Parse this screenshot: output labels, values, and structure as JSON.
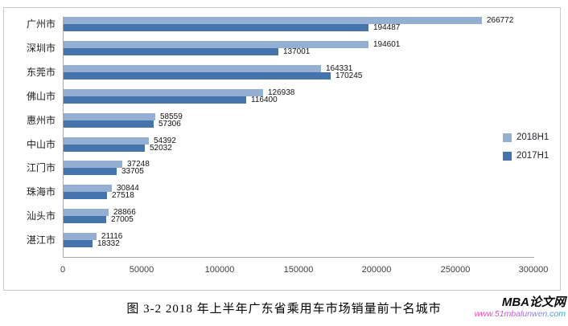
{
  "chart_data": {
    "type": "bar",
    "orientation": "horizontal",
    "title": "",
    "categories": [
      "广州市",
      "深圳市",
      "东莞市",
      "佛山市",
      "惠州市",
      "中山市",
      "江门市",
      "珠海市",
      "汕头市",
      "湛江市"
    ],
    "series": [
      {
        "name": "2018H1",
        "color": "#95AFD3",
        "values": [
          266772,
          194601,
          164331,
          126938,
          58559,
          54392,
          37248,
          30844,
          28866,
          21116
        ]
      },
      {
        "name": "2017H1",
        "color": "#4573AB",
        "values": [
          194487,
          137001,
          170245,
          116400,
          57306,
          52032,
          33705,
          27518,
          27005,
          18332
        ]
      }
    ],
    "xlim": [
      0,
      300000
    ],
    "x_ticks": [
      0,
      50000,
      100000,
      150000,
      200000,
      250000,
      300000
    ],
    "grid": false,
    "data_labels": true,
    "legend_position": "right",
    "axis_color": "#a6a6a6"
  },
  "caption": "图 3-2  2018 年上半年广东省乘用车市场销量前十名城市",
  "watermark": {
    "title": "MBA论文网",
    "url": "www.51mbalunwen.com",
    "gradient_colors": [
      "#ef3bb2",
      "#00aee6"
    ]
  }
}
